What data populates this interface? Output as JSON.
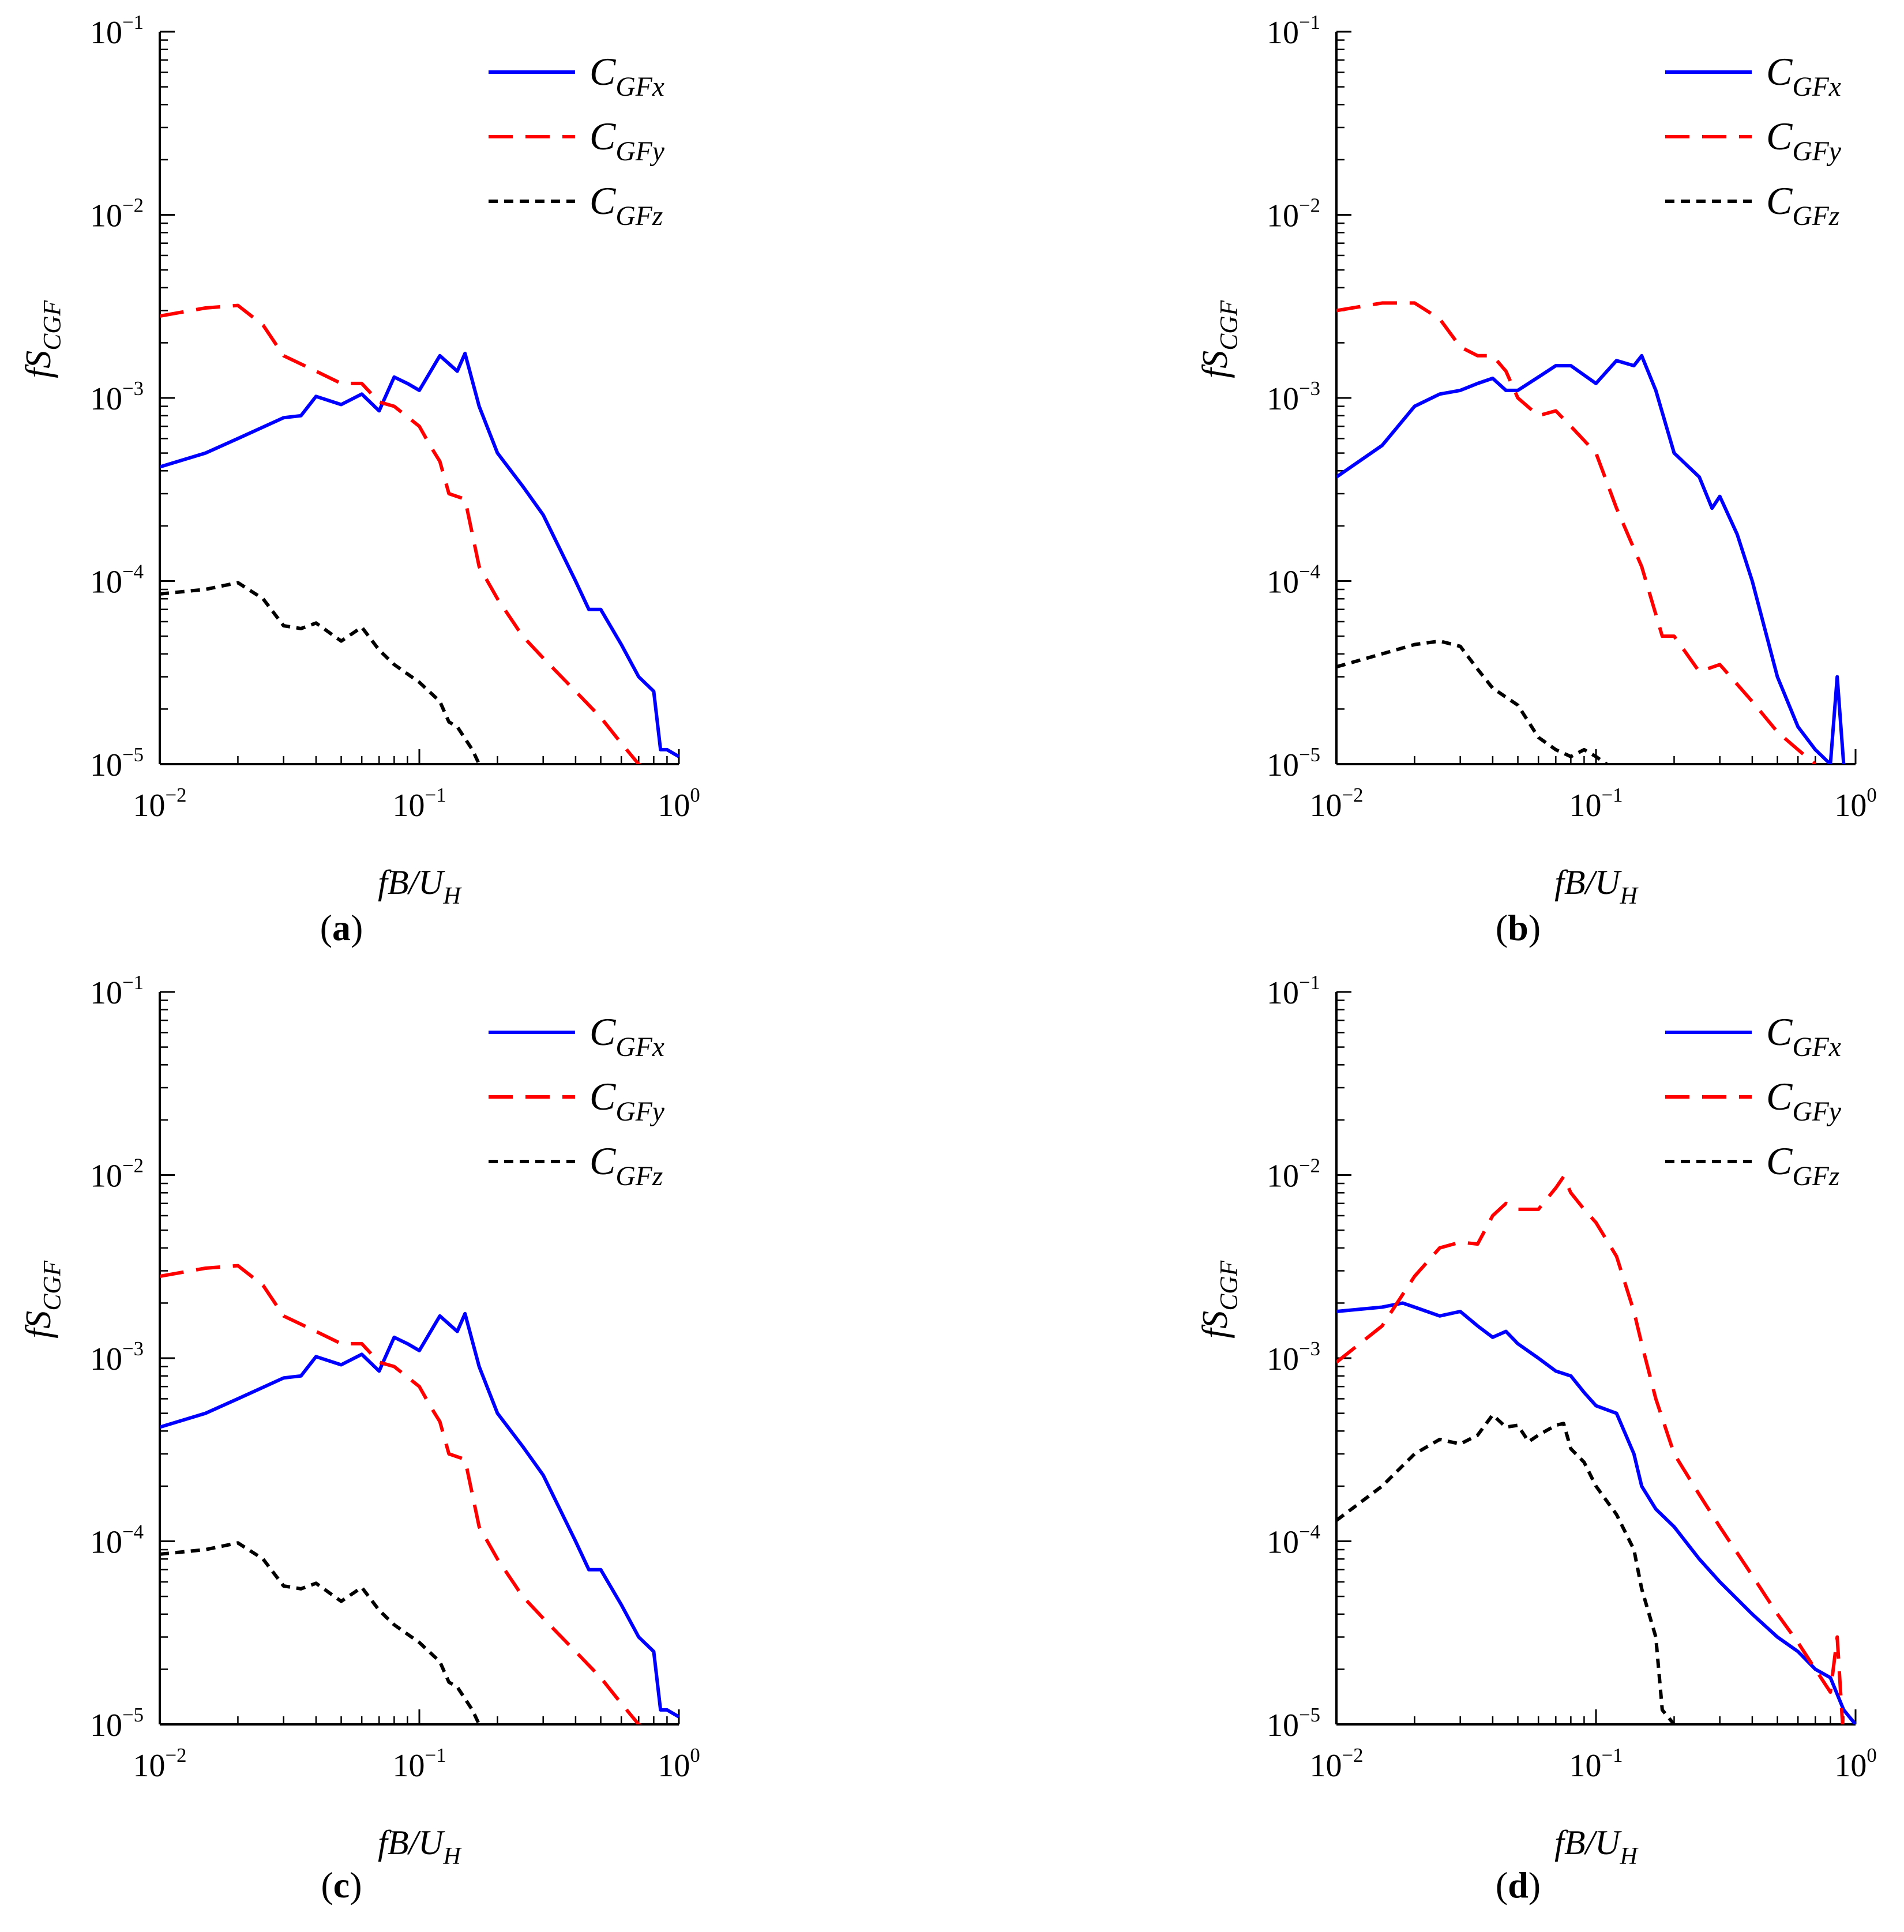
{
  "chart_data": [
    {
      "type": "line",
      "panel_label": "(a)",
      "xlabel": "fB/U_H",
      "ylabel": "fS_CGF",
      "xscale": "log",
      "yscale": "log",
      "xlim": [
        0.01,
        1
      ],
      "ylim": [
        1e-05,
        0.1
      ],
      "x_tick_labels": [
        "10^-2",
        "10^-1",
        "10^0"
      ],
      "y_tick_labels": [
        "10^-5",
        "10^-4",
        "10^-3",
        "10^-2",
        "10^-1"
      ],
      "legend_position": "top-right",
      "series": [
        {
          "name": "C_GFx",
          "style": "solid",
          "color": "#0000ff",
          "x": [
            0.01,
            0.015,
            0.02,
            0.03,
            0.035,
            0.04,
            0.05,
            0.06,
            0.07,
            0.08,
            0.09,
            0.1,
            0.12,
            0.14,
            0.15,
            0.17,
            0.2,
            0.25,
            0.3,
            0.4,
            0.45,
            0.5,
            0.6,
            0.7,
            0.8,
            0.85,
            0.9,
            1.0
          ],
          "y": [
            0.00042,
            0.0005,
            0.0006,
            0.00078,
            0.0008,
            0.00102,
            0.00092,
            0.00105,
            0.00085,
            0.0013,
            0.0012,
            0.0011,
            0.0017,
            0.0014,
            0.00175,
            0.0009,
            0.0005,
            0.00033,
            0.00023,
            0.0001,
            7e-05,
            7e-05,
            4.5e-05,
            3e-05,
            2.5e-05,
            1.2e-05,
            1.2e-05,
            1.1e-05
          ]
        },
        {
          "name": "C_GFy",
          "style": "dashed",
          "color": "#ff0000",
          "x": [
            0.01,
            0.015,
            0.02,
            0.025,
            0.03,
            0.04,
            0.05,
            0.06,
            0.07,
            0.08,
            0.1,
            0.11,
            0.12,
            0.13,
            0.15,
            0.17,
            0.2,
            0.25,
            0.3,
            0.4,
            0.5,
            0.6,
            0.7,
            0.8
          ],
          "y": [
            0.0028,
            0.0031,
            0.0032,
            0.0025,
            0.0017,
            0.0014,
            0.0012,
            0.0012,
            0.00095,
            0.0009,
            0.0007,
            0.00055,
            0.00045,
            0.0003,
            0.00028,
            0.00012,
            8e-05,
            5e-05,
            3.8e-05,
            2.5e-05,
            1.8e-05,
            1.3e-05,
            1e-05,
            9e-06
          ]
        },
        {
          "name": "C_GFz",
          "style": "dotted",
          "color": "#000000",
          "x": [
            0.01,
            0.015,
            0.02,
            0.025,
            0.03,
            0.035,
            0.04,
            0.05,
            0.06,
            0.07,
            0.08,
            0.1,
            0.12,
            0.13,
            0.14,
            0.16,
            0.17
          ],
          "y": [
            8.5e-05,
            9e-05,
            9.8e-05,
            8e-05,
            5.7e-05,
            5.5e-05,
            5.9e-05,
            4.7e-05,
            5.6e-05,
            4.2e-05,
            3.5e-05,
            2.8e-05,
            2.2e-05,
            1.7e-05,
            1.6e-05,
            1.2e-05,
            1e-05
          ]
        }
      ]
    },
    {
      "type": "line",
      "panel_label": "(b)",
      "xlabel": "fB/U_H",
      "ylabel": "fS_CGF",
      "xscale": "log",
      "yscale": "log",
      "xlim": [
        0.01,
        1
      ],
      "ylim": [
        1e-05,
        0.1
      ],
      "x_tick_labels": [
        "10^-2",
        "10^-1",
        "10^0"
      ],
      "y_tick_labels": [
        "10^-5",
        "10^-4",
        "10^-3",
        "10^-2",
        "10^-1"
      ],
      "legend_position": "top-right",
      "series": [
        {
          "name": "C_GFx",
          "style": "solid",
          "color": "#0000ff",
          "x": [
            0.01,
            0.015,
            0.02,
            0.025,
            0.03,
            0.035,
            0.04,
            0.045,
            0.05,
            0.06,
            0.07,
            0.08,
            0.1,
            0.12,
            0.14,
            0.15,
            0.17,
            0.2,
            0.25,
            0.28,
            0.3,
            0.35,
            0.4,
            0.5,
            0.6,
            0.7,
            0.8,
            0.85,
            0.9
          ],
          "y": [
            0.00037,
            0.00055,
            0.0009,
            0.00105,
            0.0011,
            0.0012,
            0.00128,
            0.0011,
            0.0011,
            0.0013,
            0.0015,
            0.0015,
            0.0012,
            0.0016,
            0.0015,
            0.0017,
            0.0011,
            0.0005,
            0.00037,
            0.00025,
            0.00029,
            0.00018,
            0.0001,
            3e-05,
            1.6e-05,
            1.2e-05,
            1e-05,
            3e-05,
            1e-05
          ]
        },
        {
          "name": "C_GFy",
          "style": "dashed",
          "color": "#ff0000",
          "x": [
            0.01,
            0.015,
            0.02,
            0.025,
            0.03,
            0.035,
            0.04,
            0.045,
            0.05,
            0.06,
            0.07,
            0.08,
            0.1,
            0.12,
            0.15,
            0.18,
            0.2,
            0.25,
            0.3,
            0.4,
            0.5,
            0.6,
            0.7
          ],
          "y": [
            0.003,
            0.0033,
            0.0033,
            0.0027,
            0.0019,
            0.0017,
            0.0017,
            0.0014,
            0.001,
            0.0008,
            0.00085,
            0.0007,
            0.0005,
            0.00025,
            0.00012,
            5e-05,
            5e-05,
            3.2e-05,
            3.5e-05,
            2.2e-05,
            1.5e-05,
            1.2e-05,
            1e-05
          ]
        },
        {
          "name": "C_GFz",
          "style": "dotted",
          "color": "#000000",
          "x": [
            0.01,
            0.015,
            0.02,
            0.025,
            0.03,
            0.035,
            0.04,
            0.05,
            0.06,
            0.07,
            0.08,
            0.09,
            0.1,
            0.11
          ],
          "y": [
            3.4e-05,
            4e-05,
            4.5e-05,
            4.7e-05,
            4.4e-05,
            3.3e-05,
            2.6e-05,
            2.1e-05,
            1.4e-05,
            1.2e-05,
            1.1e-05,
            1.2e-05,
            1.1e-05,
            1e-05
          ]
        }
      ]
    },
    {
      "type": "line",
      "panel_label": "(c)",
      "xlabel": "fB/U_H",
      "ylabel": "fS_CGF",
      "xscale": "log",
      "yscale": "log",
      "xlim": [
        0.01,
        1
      ],
      "ylim": [
        1e-05,
        0.1
      ],
      "x_tick_labels": [
        "10^-2",
        "10^-1",
        "10^0"
      ],
      "y_tick_labels": [
        "10^-5",
        "10^-4",
        "10^-3",
        "10^-2",
        "10^-1"
      ],
      "legend_position": "top-right",
      "series": [
        {
          "name": "C_GFx",
          "style": "solid",
          "color": "#0000ff",
          "x": [
            0.01,
            0.015,
            0.02,
            0.03,
            0.035,
            0.04,
            0.05,
            0.06,
            0.07,
            0.08,
            0.09,
            0.1,
            0.12,
            0.14,
            0.15,
            0.17,
            0.2,
            0.25,
            0.3,
            0.4,
            0.45,
            0.5,
            0.6,
            0.7,
            0.8,
            0.85,
            0.9,
            1.0
          ],
          "y": [
            0.00042,
            0.0005,
            0.0006,
            0.00078,
            0.0008,
            0.00102,
            0.00092,
            0.00105,
            0.00085,
            0.0013,
            0.0012,
            0.0011,
            0.0017,
            0.0014,
            0.00175,
            0.0009,
            0.0005,
            0.00033,
            0.00023,
            0.0001,
            7e-05,
            7e-05,
            4.5e-05,
            3e-05,
            2.5e-05,
            1.2e-05,
            1.2e-05,
            1.1e-05
          ]
        },
        {
          "name": "C_GFy",
          "style": "dashed",
          "color": "#ff0000",
          "x": [
            0.01,
            0.015,
            0.02,
            0.025,
            0.03,
            0.04,
            0.05,
            0.06,
            0.07,
            0.08,
            0.1,
            0.11,
            0.12,
            0.13,
            0.15,
            0.17,
            0.2,
            0.25,
            0.3,
            0.4,
            0.5,
            0.6,
            0.7,
            0.8
          ],
          "y": [
            0.0028,
            0.0031,
            0.0032,
            0.0025,
            0.0017,
            0.0014,
            0.0012,
            0.0012,
            0.00095,
            0.0009,
            0.0007,
            0.00055,
            0.00045,
            0.0003,
            0.00028,
            0.00012,
            8e-05,
            5e-05,
            3.8e-05,
            2.5e-05,
            1.8e-05,
            1.3e-05,
            1e-05,
            9e-06
          ]
        },
        {
          "name": "C_GFz",
          "style": "dotted",
          "color": "#000000",
          "x": [
            0.01,
            0.015,
            0.02,
            0.025,
            0.03,
            0.035,
            0.04,
            0.05,
            0.06,
            0.07,
            0.08,
            0.1,
            0.12,
            0.13,
            0.14,
            0.16,
            0.17
          ],
          "y": [
            8.5e-05,
            9e-05,
            9.8e-05,
            8e-05,
            5.7e-05,
            5.5e-05,
            5.9e-05,
            4.7e-05,
            5.6e-05,
            4.2e-05,
            3.5e-05,
            2.8e-05,
            2.2e-05,
            1.7e-05,
            1.6e-05,
            1.2e-05,
            1e-05
          ]
        }
      ]
    },
    {
      "type": "line",
      "panel_label": "(d)",
      "xlabel": "fB/U_H",
      "ylabel": "fS_CGF",
      "xscale": "log",
      "yscale": "log",
      "xlim": [
        0.01,
        1
      ],
      "ylim": [
        1e-05,
        0.1
      ],
      "x_tick_labels": [
        "10^-2",
        "10^-1",
        "10^0"
      ],
      "y_tick_labels": [
        "10^-5",
        "10^-4",
        "10^-3",
        "10^-2",
        "10^-1"
      ],
      "legend_position": "top-right",
      "series": [
        {
          "name": "C_GFx",
          "style": "solid",
          "color": "#0000ff",
          "x": [
            0.01,
            0.015,
            0.018,
            0.02,
            0.025,
            0.03,
            0.035,
            0.04,
            0.045,
            0.05,
            0.06,
            0.07,
            0.08,
            0.09,
            0.1,
            0.12,
            0.14,
            0.15,
            0.17,
            0.2,
            0.25,
            0.3,
            0.4,
            0.5,
            0.6,
            0.7,
            0.8,
            0.9,
            1.0
          ],
          "y": [
            0.0018,
            0.0019,
            0.002,
            0.0019,
            0.0017,
            0.0018,
            0.0015,
            0.0013,
            0.0014,
            0.0012,
            0.001,
            0.00085,
            0.0008,
            0.00065,
            0.00055,
            0.0005,
            0.0003,
            0.0002,
            0.00015,
            0.00012,
            8e-05,
            6e-05,
            4e-05,
            3e-05,
            2.5e-05,
            2e-05,
            1.8e-05,
            1.2e-05,
            1e-05
          ]
        },
        {
          "name": "C_GFy",
          "style": "dashed",
          "color": "#ff0000",
          "x": [
            0.01,
            0.015,
            0.02,
            0.025,
            0.03,
            0.035,
            0.04,
            0.045,
            0.05,
            0.06,
            0.07,
            0.075,
            0.08,
            0.09,
            0.1,
            0.12,
            0.14,
            0.15,
            0.17,
            0.2,
            0.25,
            0.3,
            0.4,
            0.5,
            0.6,
            0.7,
            0.8,
            0.85,
            0.9
          ],
          "y": [
            0.00095,
            0.0015,
            0.0028,
            0.004,
            0.0043,
            0.0042,
            0.006,
            0.007,
            0.0065,
            0.0065,
            0.0085,
            0.0098,
            0.008,
            0.0065,
            0.0055,
            0.0036,
            0.0018,
            0.0012,
            0.0006,
            0.0003,
            0.00018,
            0.00012,
            6.5e-05,
            4e-05,
            2.8e-05,
            2e-05,
            1.5e-05,
            3e-05,
            8e-06
          ]
        },
        {
          "name": "C_GFz",
          "style": "dotted",
          "color": "#000000",
          "x": [
            0.01,
            0.015,
            0.02,
            0.025,
            0.03,
            0.035,
            0.04,
            0.045,
            0.05,
            0.055,
            0.06,
            0.07,
            0.075,
            0.08,
            0.09,
            0.1,
            0.12,
            0.14,
            0.15,
            0.17,
            0.18,
            0.2
          ],
          "y": [
            0.00013,
            0.0002,
            0.0003,
            0.00036,
            0.00034,
            0.00038,
            0.00049,
            0.00042,
            0.00043,
            0.00035,
            0.00038,
            0.00043,
            0.00044,
            0.00032,
            0.00027,
            0.0002,
            0.00014,
            9e-05,
            5.5e-05,
            3e-05,
            1.2e-05,
            1e-05
          ]
        }
      ]
    }
  ]
}
